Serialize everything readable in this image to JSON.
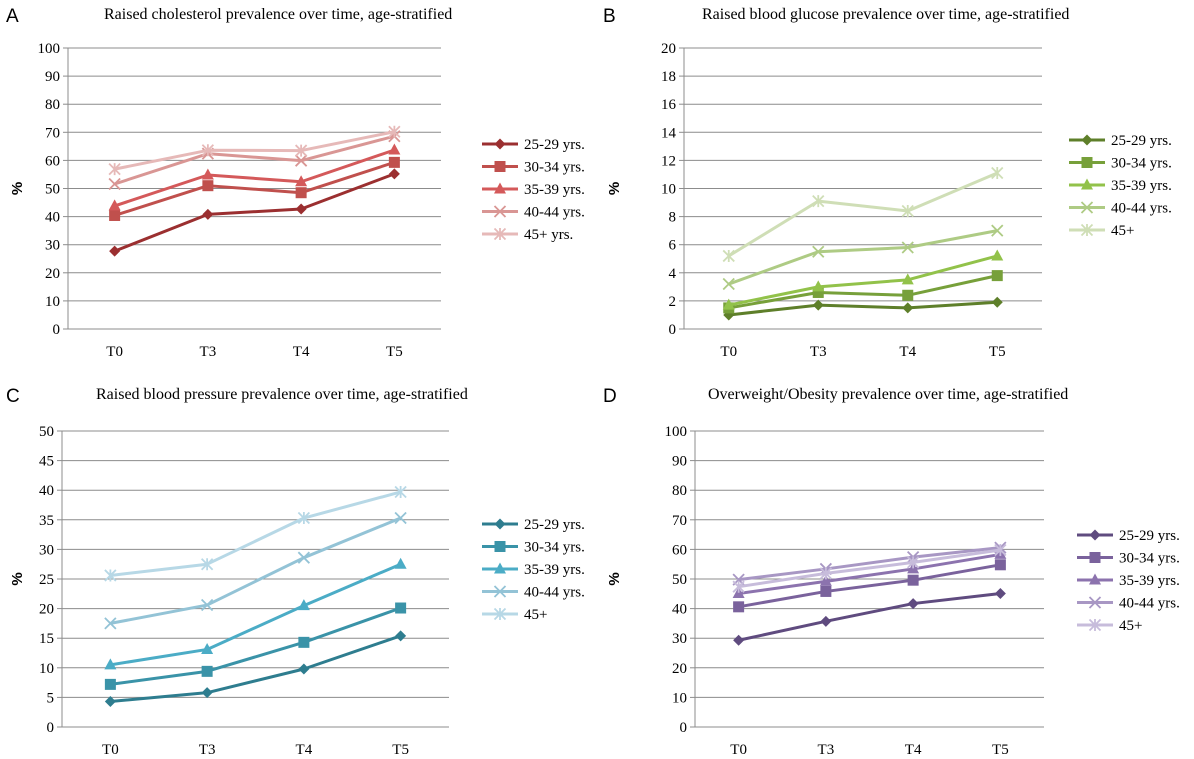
{
  "chart_data": [
    {
      "panel": "A",
      "type": "line",
      "title": "Raised cholesterol prevalence over time, age-stratified",
      "ylabel": "%",
      "categories": [
        "T0",
        "T3",
        "T4",
        "T5"
      ],
      "ylim": [
        0,
        100
      ],
      "ystep": 10,
      "grid": true,
      "legend": "right",
      "series": [
        {
          "name": "25-29 yrs.",
          "values": [
            27.7,
            40.8,
            42.7,
            55.2
          ],
          "marker": "diamond",
          "color": "#9b2f30"
        },
        {
          "name": "30-34 yrs.",
          "values": [
            40.4,
            51.0,
            48.5,
            59.3
          ],
          "marker": "square",
          "color": "#c0504d"
        },
        {
          "name": "35-39 yrs.",
          "values": [
            43.8,
            54.8,
            52.4,
            63.7
          ],
          "marker": "triangle",
          "color": "#d4595a"
        },
        {
          "name": "40-44 yrs.",
          "values": [
            51.6,
            62.4,
            59.9,
            68.6
          ],
          "marker": "x",
          "color": "#d99694"
        },
        {
          "name": "45+ yrs.",
          "values": [
            56.9,
            63.6,
            63.5,
            70.2
          ],
          "marker": "star",
          "color": "#e6b9b8"
        }
      ]
    },
    {
      "panel": "B",
      "type": "line",
      "title": "Raised blood glucose prevalence over time, age-stratified",
      "ylabel": "%",
      "categories": [
        "T0",
        "T3",
        "T4",
        "T5"
      ],
      "ylim": [
        0,
        20
      ],
      "ystep": 2,
      "grid": true,
      "legend": "right",
      "series": [
        {
          "name": "25-29 yrs.",
          "values": [
            1.0,
            1.7,
            1.5,
            1.9
          ],
          "marker": "diamond",
          "color": "#5e7f2a"
        },
        {
          "name": "30-34 yrs.",
          "values": [
            1.5,
            2.6,
            2.4,
            3.8
          ],
          "marker": "square",
          "color": "#77a03a"
        },
        {
          "name": "35-39 yrs.",
          "values": [
            1.7,
            3.0,
            3.5,
            5.2
          ],
          "marker": "triangle",
          "color": "#92c24a"
        },
        {
          "name": "40-44 yrs.",
          "values": [
            3.2,
            5.5,
            5.8,
            7.0
          ],
          "marker": "x",
          "color": "#aecb84"
        },
        {
          "name": "45+",
          "values": [
            5.2,
            9.1,
            8.4,
            11.1
          ],
          "marker": "star",
          "color": "#cfdeb6"
        }
      ]
    },
    {
      "panel": "C",
      "type": "line",
      "title": "Raised blood pressure prevalence over time, age-stratified",
      "ylabel": "%",
      "categories": [
        "T0",
        "T3",
        "T4",
        "T5"
      ],
      "ylim": [
        0,
        50
      ],
      "ystep": 5,
      "grid": true,
      "legend": "right",
      "series": [
        {
          "name": "25-29 yrs.",
          "values": [
            4.3,
            5.8,
            9.8,
            15.4
          ],
          "marker": "diamond",
          "color": "#2e7d8f"
        },
        {
          "name": "30-34 yrs.",
          "values": [
            7.2,
            9.4,
            14.3,
            20.1
          ],
          "marker": "square",
          "color": "#3a93a8"
        },
        {
          "name": "35-39 yrs.",
          "values": [
            10.5,
            13.1,
            20.5,
            27.5
          ],
          "marker": "triangle",
          "color": "#4bacc6"
        },
        {
          "name": "40-44 yrs.",
          "values": [
            17.5,
            20.6,
            28.6,
            35.3
          ],
          "marker": "x",
          "color": "#93c3d6"
        },
        {
          "name": "45+",
          "values": [
            25.6,
            27.5,
            35.3,
            39.7
          ],
          "marker": "star",
          "color": "#b7d8e6"
        }
      ]
    },
    {
      "panel": "D",
      "type": "line",
      "title": "Overweight/Obesity prevalence over time, age-stratified",
      "ylabel": "%",
      "categories": [
        "T0",
        "T3",
        "T4",
        "T5"
      ],
      "ylim": [
        0,
        100
      ],
      "ystep": 10,
      "grid": true,
      "legend": "right",
      "series": [
        {
          "name": "25-29 yrs.",
          "values": [
            29.3,
            35.7,
            41.7,
            45.1
          ],
          "marker": "diamond",
          "color": "#5f4b7f"
        },
        {
          "name": "30-34 yrs.",
          "values": [
            40.6,
            45.8,
            49.6,
            54.8
          ],
          "marker": "square",
          "color": "#7a629c"
        },
        {
          "name": "35-39 yrs.",
          "values": [
            45.1,
            49.2,
            53.4,
            58.3
          ],
          "marker": "triangle",
          "color": "#8c73ae"
        },
        {
          "name": "40-44 yrs.",
          "values": [
            49.8,
            53.4,
            57.4,
            60.6
          ],
          "marker": "x",
          "color": "#a897c4"
        },
        {
          "name": "45+",
          "values": [
            47.4,
            51.9,
            55.6,
            59.8
          ],
          "marker": "star",
          "color": "#c7bcdb"
        }
      ]
    }
  ]
}
